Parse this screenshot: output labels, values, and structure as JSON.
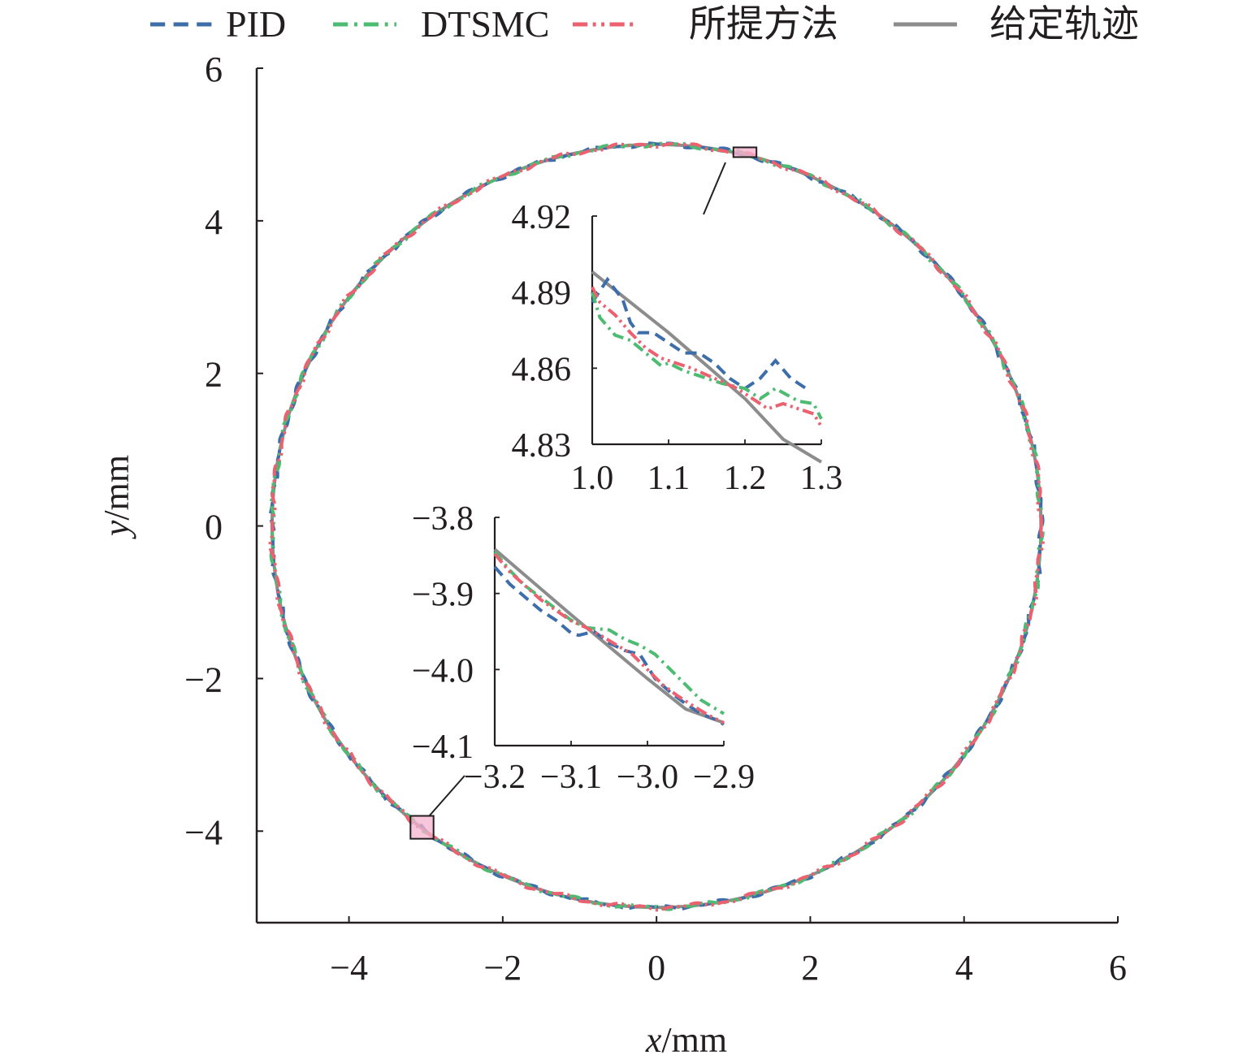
{
  "chart_data": {
    "type": "line",
    "xlabel": {
      "var": "x",
      "unit": "/mm"
    },
    "ylabel": {
      "var": "y",
      "unit": "/mm"
    },
    "xlim": [
      -5.2,
      6
    ],
    "ylim": [
      -5.2,
      6
    ],
    "xticks": [
      "−4",
      "−2",
      "0",
      "2",
      "4",
      "6"
    ],
    "yticks": [
      "−4",
      "−2",
      "0",
      "2",
      "4",
      "6"
    ],
    "xtick_values": [
      -4,
      -2,
      0,
      2,
      4,
      6
    ],
    "ytick_values": [
      -4,
      -2,
      0,
      2,
      4,
      6
    ],
    "legend": {
      "placement": "top",
      "entries": [
        {
          "name": "PID",
          "color": "#3e6eaa",
          "style": "dashed"
        },
        {
          "name": "DTSMC",
          "color": "#4dbb72",
          "style": "dash-dot"
        },
        {
          "name": "所提方法",
          "color": "#ec6170",
          "style": "dash-dot-dot"
        },
        {
          "name": "给定轨迹",
          "color": "#8c8c8c",
          "style": "solid"
        }
      ]
    },
    "reference_trajectory": {
      "shape": "circle",
      "center": [
        0,
        0
      ],
      "radius": 5
    },
    "insets": [
      {
        "region": {
          "x": [
            1.0,
            1.3
          ],
          "y": [
            4.83,
            4.92
          ]
        },
        "xticks": [
          "1.0",
          "1.1",
          "1.2",
          "1.3"
        ],
        "yticks": [
          "4.92",
          "4.89",
          "4.86",
          "4.83"
        ],
        "xtick_values": [
          1.0,
          1.1,
          1.2,
          1.3
        ],
        "ytick_values": [
          4.92,
          4.89,
          4.86,
          4.83
        ],
        "series": [
          {
            "name": "PID",
            "x": [
              1.0,
              1.02,
              1.04,
              1.05,
              1.06,
              1.08,
              1.1,
              1.12,
              1.14,
              1.16,
              1.18,
              1.2,
              1.22,
              1.24,
              1.26,
              1.28
            ],
            "y": [
              4.886,
              4.895,
              4.887,
              4.878,
              4.874,
              4.874,
              4.87,
              4.866,
              4.866,
              4.862,
              4.856,
              4.852,
              4.856,
              4.863,
              4.856,
              4.852
            ]
          },
          {
            "name": "DTSMC",
            "x": [
              1.0,
              1.01,
              1.03,
              1.05,
              1.07,
              1.09,
              1.1,
              1.12,
              1.14,
              1.17,
              1.2,
              1.22,
              1.24,
              1.27,
              1.29,
              1.3
            ],
            "y": [
              4.89,
              4.88,
              4.873,
              4.871,
              4.866,
              4.861,
              4.862,
              4.859,
              4.857,
              4.854,
              4.852,
              4.848,
              4.852,
              4.847,
              4.846,
              4.84
            ]
          },
          {
            "name": "所提方法",
            "x": [
              1.0,
              1.01,
              1.03,
              1.05,
              1.07,
              1.09,
              1.11,
              1.13,
              1.16,
              1.19,
              1.21,
              1.23,
              1.25,
              1.27,
              1.29,
              1.3
            ],
            "y": [
              4.892,
              4.886,
              4.881,
              4.874,
              4.868,
              4.864,
              4.862,
              4.86,
              4.856,
              4.852,
              4.848,
              4.844,
              4.846,
              4.844,
              4.842,
              4.837
            ]
          },
          {
            "name": "给定轨迹",
            "x": [
              1.0,
              1.05,
              1.1,
              1.15,
              1.2,
              1.25,
              1.3
            ],
            "y": [
              4.898,
              4.886,
              4.874,
              4.861,
              4.848,
              4.832,
              4.823
            ]
          }
        ]
      },
      {
        "region": {
          "x": [
            -3.2,
            -2.9
          ],
          "y": [
            -4.1,
            -3.8
          ]
        },
        "xticks": [
          "−3.2",
          "−3.1",
          "−3.0",
          "−2.9"
        ],
        "yticks": [
          "−3.8",
          "−3.9",
          "−4.0",
          "−4.1"
        ],
        "xtick_values": [
          -3.2,
          -3.1,
          -3.0,
          -2.9
        ],
        "ytick_values": [
          -3.8,
          -3.9,
          -4.0,
          -4.1
        ],
        "series": [
          {
            "name": "PID",
            "x": [
              -3.2,
              -3.18,
              -3.16,
              -3.14,
              -3.12,
              -3.1,
              -3.09,
              -3.07,
              -3.05,
              -3.03,
              -3.01,
              -2.99,
              -2.97,
              -2.95,
              -2.93,
              -2.91,
              -2.9
            ],
            "y": [
              -3.865,
              -3.888,
              -3.905,
              -3.922,
              -3.935,
              -3.952,
              -3.955,
              -3.95,
              -3.965,
              -3.975,
              -3.98,
              -4.012,
              -4.03,
              -4.045,
              -4.058,
              -4.066,
              -4.072
            ]
          },
          {
            "name": "DTSMC",
            "x": [
              -3.2,
              -3.18,
              -3.16,
              -3.14,
              -3.12,
              -3.1,
              -3.08,
              -3.05,
              -3.03,
              -3.01,
              -2.99,
              -2.97,
              -2.95,
              -2.93,
              -2.9
            ],
            "y": [
              -3.845,
              -3.87,
              -3.89,
              -3.905,
              -3.92,
              -3.935,
              -3.945,
              -3.948,
              -3.96,
              -3.968,
              -3.98,
              -4.0,
              -4.02,
              -4.04,
              -4.058
            ]
          },
          {
            "name": "所提方法",
            "x": [
              -3.2,
              -3.18,
              -3.16,
              -3.14,
              -3.12,
              -3.1,
              -3.08,
              -3.06,
              -3.04,
              -3.02,
              -3.0,
              -2.98,
              -2.96,
              -2.94,
              -2.92,
              -2.9
            ],
            "y": [
              -3.848,
              -3.872,
              -3.89,
              -3.908,
              -3.922,
              -3.936,
              -3.945,
              -3.956,
              -3.968,
              -3.98,
              -4.0,
              -4.02,
              -4.035,
              -4.048,
              -4.06,
              -4.07
            ]
          },
          {
            "name": "给定轨迹",
            "x": [
              -3.2,
              -3.15,
              -3.1,
              -3.05,
              -3.0,
              -2.95,
              -2.9
            ],
            "y": [
              -3.842,
              -3.885,
              -3.928,
              -3.97,
              -4.012,
              -4.052,
              -4.07
            ]
          }
        ]
      }
    ]
  }
}
